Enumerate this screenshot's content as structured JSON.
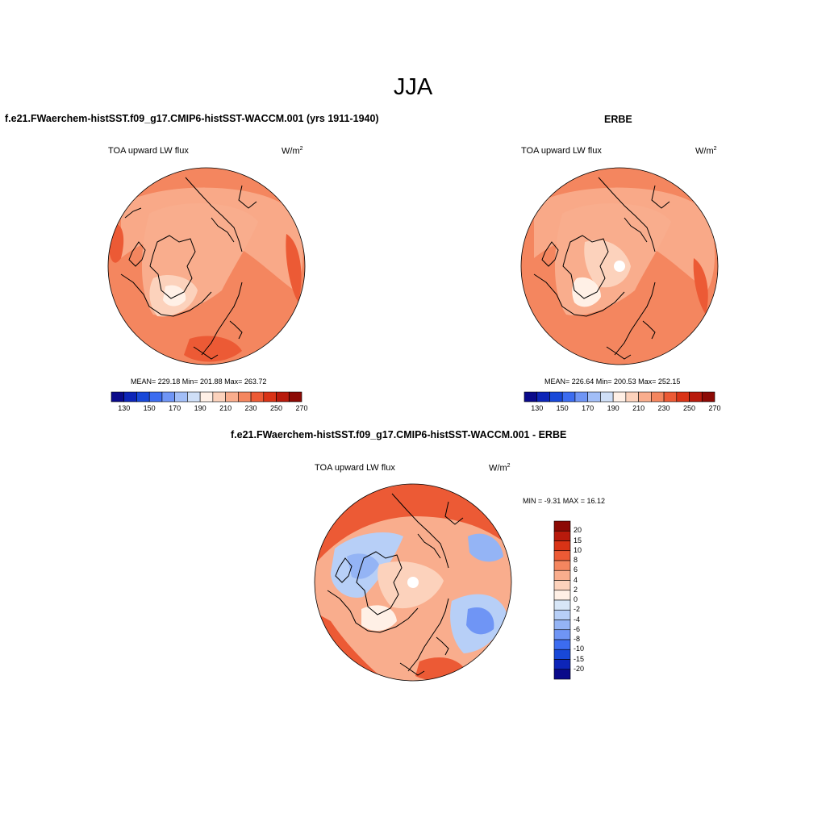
{
  "main_title": "JJA",
  "panels": [
    {
      "title": "f.e21.FWaerchem-histSST.f09_g17.CMIP6-histSST-WACCM.001 (yrs 1911-1940)",
      "variable": "TOA upward LW flux",
      "units_base": "W/m",
      "units_exp": "2",
      "stats": "MEAN= 229.18  Min= 201.88  Max= 263.72",
      "mean": 229.18,
      "min": 201.88,
      "max": 263.72
    },
    {
      "title": "ERBE",
      "variable": "TOA upward LW flux",
      "units_base": "W/m",
      "units_exp": "2",
      "stats": "MEAN= 226.64  Min= 200.53  Max= 252.15",
      "mean": 226.64,
      "min": 200.53,
      "max": 252.15
    },
    {
      "title": "f.e21.FWaerchem-histSST.f09_g17.CMIP6-histSST-WACCM.001 - ERBE",
      "variable": "TOA upward LW flux",
      "units_base": "W/m",
      "units_exp": "2",
      "stats": "MIN =  -9.31 MAX =  16.12",
      "min": -9.31,
      "max": 16.12
    }
  ],
  "colorbar_abs": {
    "tick_labels": [
      "130",
      "150",
      "170",
      "190",
      "210",
      "230",
      "250",
      "270"
    ],
    "colors": [
      "#0a0a8a",
      "#0d25b8",
      "#1848d8",
      "#3c6cf0",
      "#6f95f5",
      "#a2bef7",
      "#cfdff7",
      "#fff0e6",
      "#fcd2bc",
      "#f9ad8d",
      "#f4865f",
      "#ec5a35",
      "#d93316",
      "#b81a0c",
      "#8c0a05"
    ]
  },
  "colorbar_diff": {
    "tick_labels": [
      "20",
      "15",
      "10",
      "8",
      "6",
      "4",
      "2",
      "0",
      "-2",
      "-4",
      "-6",
      "-8",
      "-10",
      "-15",
      "-20"
    ],
    "colors": [
      "#8c0a05",
      "#b81a0c",
      "#d93316",
      "#ec5a35",
      "#f4865f",
      "#f9ad8d",
      "#fcd2bc",
      "#fff0e6",
      "#d7e6f7",
      "#b7cff7",
      "#94b4f5",
      "#6f95f5",
      "#3c6cf0",
      "#1848d8",
      "#0d25b8",
      "#0a0a8a"
    ]
  }
}
